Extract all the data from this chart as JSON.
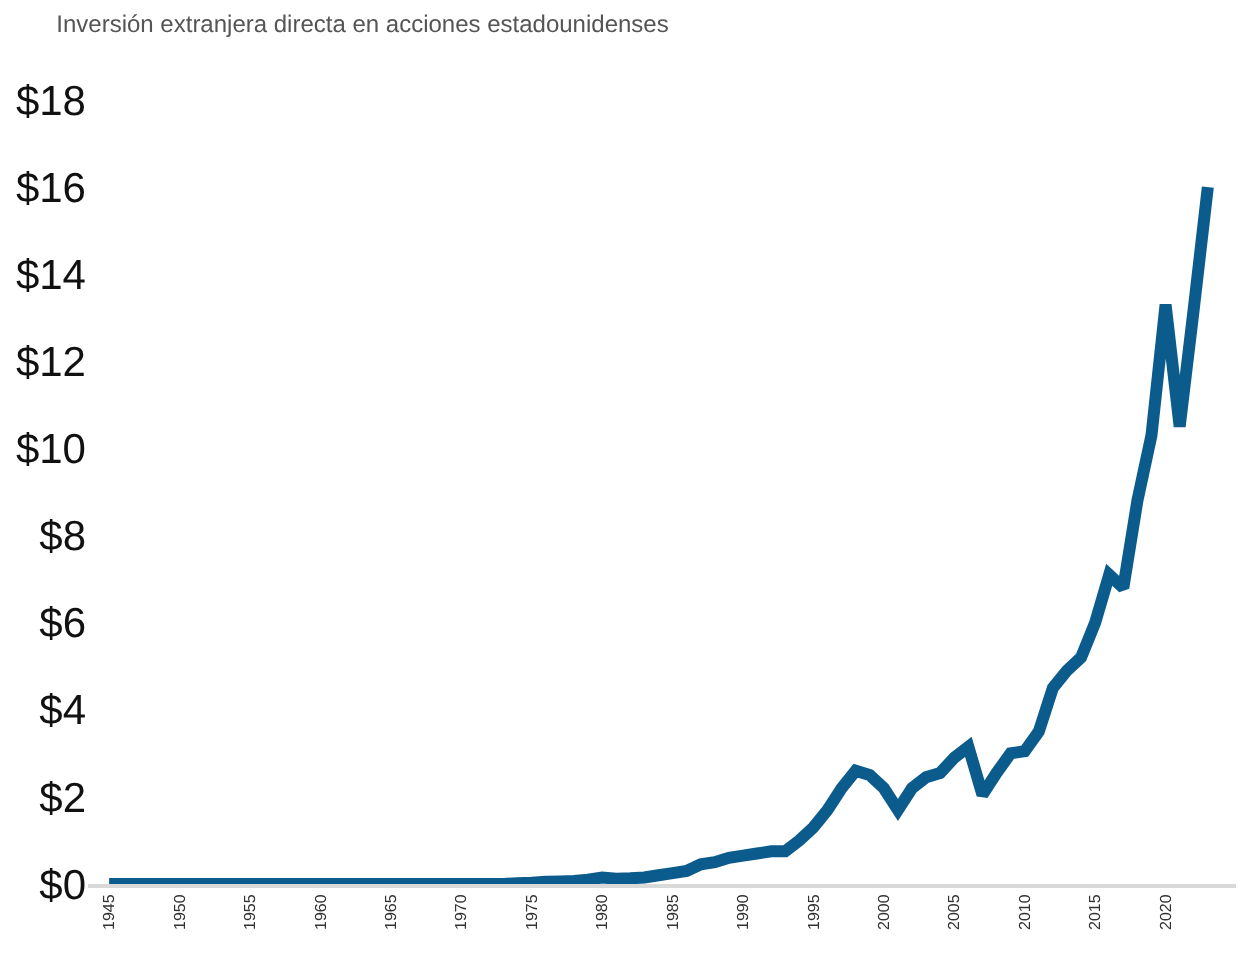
{
  "chart_data": {
    "type": "line",
    "title": "Inversión extranjera directa en acciones estadounidenses",
    "x": [
      1945,
      1946,
      1947,
      1948,
      1949,
      1950,
      1951,
      1952,
      1953,
      1954,
      1955,
      1956,
      1957,
      1958,
      1959,
      1960,
      1961,
      1962,
      1963,
      1964,
      1965,
      1966,
      1967,
      1968,
      1969,
      1970,
      1971,
      1972,
      1973,
      1974,
      1975,
      1976,
      1977,
      1978,
      1979,
      1980,
      1981,
      1982,
      1983,
      1984,
      1985,
      1986,
      1987,
      1988,
      1989,
      1990,
      1991,
      1992,
      1993,
      1994,
      1995,
      1996,
      1997,
      1998,
      1999,
      2000,
      2001,
      2002,
      2003,
      2004,
      2005,
      2006,
      2007,
      2008,
      2009,
      2010,
      2011,
      2012,
      2013,
      2014,
      2015,
      2016,
      2017,
      2018,
      2019,
      2020,
      2021,
      2022,
      2023
    ],
    "series": [
      {
        "color": "#0b5c8c",
        "values": [
          0,
          0,
          0,
          0,
          0,
          0,
          0,
          0,
          0,
          0,
          0,
          0,
          0,
          0,
          0,
          0,
          0,
          0,
          0,
          0,
          0,
          0,
          0,
          0,
          0,
          0,
          0,
          0,
          0,
          0.02,
          0.03,
          0.05,
          0.06,
          0.07,
          0.1,
          0.15,
          0.12,
          0.13,
          0.15,
          0.2,
          0.25,
          0.3,
          0.45,
          0.5,
          0.6,
          0.65,
          0.7,
          0.75,
          0.75,
          1.0,
          1.3,
          1.7,
          2.2,
          2.6,
          2.5,
          2.2,
          1.7,
          2.2,
          2.45,
          2.55,
          2.9,
          3.15,
          2.05,
          2.55,
          3.0,
          3.05,
          3.5,
          4.5,
          4.9,
          5.2,
          6.0,
          7.1,
          6.8,
          8.8,
          10.3,
          13.3,
          10.5,
          13.2,
          16.0
        ]
      }
    ],
    "xlim": [
      1943.5,
      2025
    ],
    "xticks": [
      1945,
      1950,
      1955,
      1960,
      1965,
      1970,
      1975,
      1980,
      1985,
      1990,
      1995,
      2000,
      2005,
      2010,
      2015,
      2020
    ],
    "ylim": [
      0,
      18
    ],
    "yticks": [
      {
        "value": 0,
        "label": "$0"
      },
      {
        "value": 2,
        "label": "$2"
      },
      {
        "value": 4,
        "label": "$4"
      },
      {
        "value": 6,
        "label": "$6"
      },
      {
        "value": 8,
        "label": "$8"
      },
      {
        "value": 10,
        "label": "$10"
      },
      {
        "value": 12,
        "label": "$12"
      },
      {
        "value": 14,
        "label": "$14"
      },
      {
        "value": 16,
        "label": "$16"
      },
      {
        "value": 18,
        "label": "$18"
      }
    ],
    "marker": "none",
    "line_style": "solid"
  }
}
